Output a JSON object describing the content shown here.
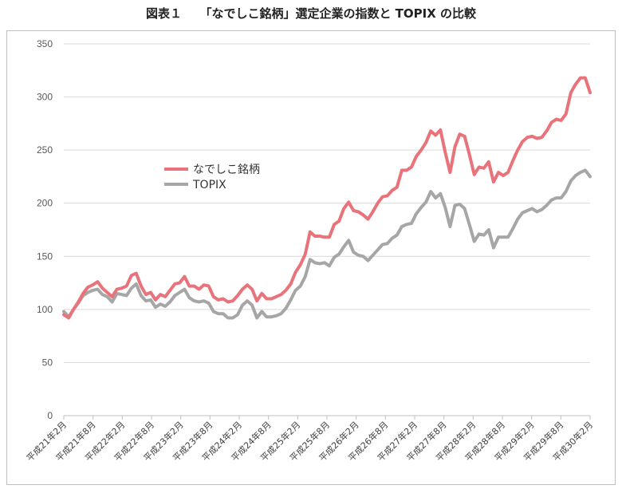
{
  "chart_data": {
    "type": "line",
    "title": "図表１　　「なでしこ銘柄」選定企業の指数と TOPIX の比較",
    "xlabel": "",
    "ylabel": "",
    "ylim": [
      0,
      350
    ],
    "yticks": [
      "0",
      "50",
      "100",
      "150",
      "200",
      "250",
      "300",
      "350"
    ],
    "grid": true,
    "legend_position": "center-left",
    "x_tick_labels": [
      "平成21年2月",
      "平成21年8月",
      "平成22年2月",
      "平成22年8月",
      "平成23年2月",
      "平成23年8月",
      "平成24年2月",
      "平成24年8月",
      "平成25年2月",
      "平成25年8月",
      "平成26年2月",
      "平成26年8月",
      "平成27年2月",
      "平成27年8月",
      "平成28年2月",
      "平成28年8月",
      "平成29年2月",
      "平成29年8月",
      "平成30年2月"
    ],
    "series": [
      {
        "name": "なでしこ銘柄",
        "color": "#e8737a",
        "values": [
          95,
          92,
          100,
          107,
          115,
          121,
          123,
          126,
          120,
          116,
          112,
          119,
          120,
          122,
          132,
          134,
          122,
          114,
          116,
          109,
          114,
          112,
          118,
          124,
          125,
          131,
          122,
          122,
          119,
          123,
          122,
          112,
          109,
          110,
          107,
          108,
          113,
          119,
          123,
          119,
          108,
          115,
          110,
          110,
          112,
          114,
          118,
          124,
          135,
          142,
          152,
          173,
          169,
          169,
          168,
          168,
          180,
          183,
          195,
          201,
          193,
          192,
          189,
          185,
          192,
          200,
          206,
          207,
          212,
          215,
          231,
          231,
          234,
          244,
          250,
          257,
          268,
          264,
          269,
          248,
          229,
          253,
          265,
          263,
          246,
          227,
          234,
          233,
          239,
          220,
          229,
          226,
          229,
          240,
          250,
          258,
          262,
          263,
          261,
          262,
          268,
          276,
          279,
          278,
          284,
          304,
          312,
          318,
          318,
          304
        ]
      },
      {
        "name": "TOPIX",
        "color": "#a6a6a6",
        "values": [
          98,
          93,
          100,
          106,
          113,
          116,
          118,
          119,
          114,
          112,
          107,
          115,
          114,
          113,
          120,
          124,
          113,
          108,
          109,
          102,
          105,
          103,
          107,
          113,
          116,
          119,
          111,
          108,
          107,
          108,
          106,
          98,
          96,
          96,
          92,
          92,
          95,
          104,
          108,
          104,
          92,
          98,
          93,
          93,
          94,
          96,
          101,
          109,
          118,
          122,
          131,
          147,
          144,
          143,
          144,
          141,
          149,
          152,
          159,
          165,
          154,
          151,
          150,
          146,
          151,
          156,
          161,
          162,
          167,
          170,
          178,
          180,
          181,
          190,
          196,
          201,
          211,
          205,
          209,
          196,
          178,
          198,
          199,
          195,
          180,
          164,
          171,
          170,
          175,
          158,
          168,
          168,
          168,
          176,
          185,
          191,
          193,
          195,
          192,
          194,
          198,
          203,
          205,
          205,
          211,
          221,
          226,
          229,
          231,
          225
        ]
      }
    ]
  }
}
